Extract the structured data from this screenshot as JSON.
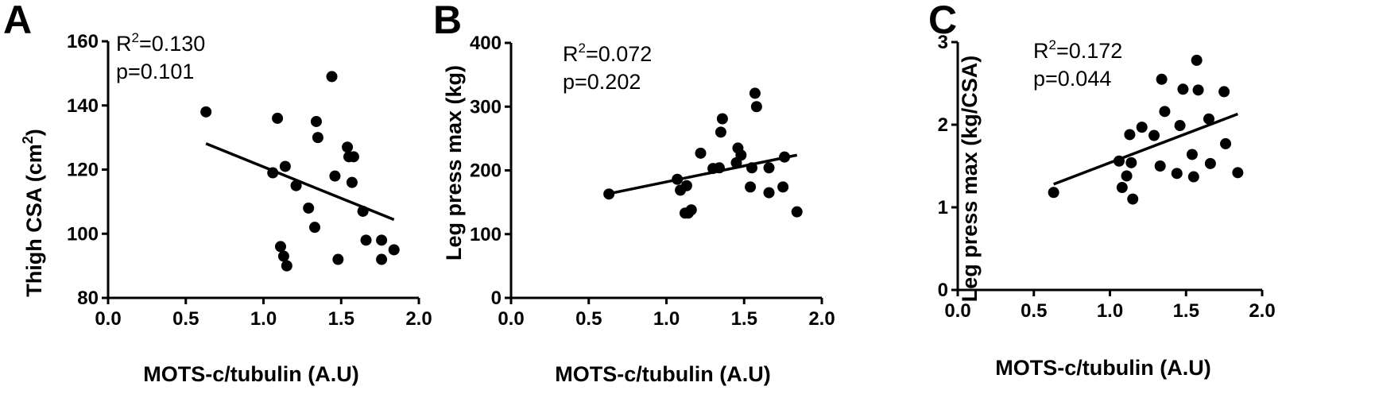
{
  "chart_data": [
    {
      "type": "scatter",
      "panel": "A",
      "xlabel": "MOTS-c/tubulin (A.U)",
      "ylabel": "Thigh CSA (cm²)",
      "xlim": [
        0.0,
        2.0
      ],
      "ylim": [
        80,
        160
      ],
      "x_ticks": [
        "0.0",
        "0.5",
        "1.0",
        "1.5",
        "2.0"
      ],
      "y_ticks": [
        "80",
        "100",
        "120",
        "140",
        "160"
      ],
      "r2_text": "=0.130",
      "p_text": "p=0.101",
      "points": [
        [
          0.63,
          138
        ],
        [
          1.06,
          119
        ],
        [
          1.09,
          136
        ],
        [
          1.11,
          96
        ],
        [
          1.13,
          93
        ],
        [
          1.14,
          121
        ],
        [
          1.15,
          90
        ],
        [
          1.21,
          115
        ],
        [
          1.29,
          108
        ],
        [
          1.33,
          102
        ],
        [
          1.34,
          135
        ],
        [
          1.35,
          130
        ],
        [
          1.44,
          149
        ],
        [
          1.46,
          118
        ],
        [
          1.48,
          92
        ],
        [
          1.54,
          127
        ],
        [
          1.55,
          124
        ],
        [
          1.57,
          116
        ],
        [
          1.58,
          124
        ],
        [
          1.64,
          107
        ],
        [
          1.66,
          98
        ],
        [
          1.76,
          98
        ],
        [
          1.76,
          92
        ],
        [
          1.84,
          95
        ]
      ],
      "fit": [
        [
          0.63,
          128.1
        ],
        [
          1.84,
          104.4
        ]
      ]
    },
    {
      "type": "scatter",
      "panel": "B",
      "xlabel": "MOTS-c/tubulin (A.U)",
      "ylabel": "Leg press max (kg)",
      "xlim": [
        0.0,
        2.0
      ],
      "ylim": [
        0,
        400
      ],
      "x_ticks": [
        "0.0",
        "0.5",
        "1.0",
        "1.5",
        "2.0"
      ],
      "y_ticks": [
        "0",
        "100",
        "200",
        "300",
        "400"
      ],
      "r2_text": "=0.072",
      "p_text": "p=0.202",
      "points": [
        [
          0.63,
          163
        ],
        [
          1.07,
          186
        ],
        [
          1.09,
          169
        ],
        [
          1.12,
          133
        ],
        [
          1.13,
          176
        ],
        [
          1.14,
          133
        ],
        [
          1.16,
          138
        ],
        [
          1.22,
          227
        ],
        [
          1.3,
          203
        ],
        [
          1.34,
          204
        ],
        [
          1.35,
          260
        ],
        [
          1.36,
          281
        ],
        [
          1.45,
          212
        ],
        [
          1.46,
          235
        ],
        [
          1.48,
          224
        ],
        [
          1.54,
          174
        ],
        [
          1.55,
          204
        ],
        [
          1.57,
          321
        ],
        [
          1.58,
          300
        ],
        [
          1.66,
          165
        ],
        [
          1.66,
          204
        ],
        [
          1.75,
          174
        ],
        [
          1.76,
          221
        ],
        [
          1.84,
          135
        ]
      ],
      "fit": [
        [
          0.63,
          163.5
        ],
        [
          1.84,
          224
        ]
      ]
    },
    {
      "type": "scatter",
      "panel": "C",
      "xlabel": "MOTS-c/tubulin (A.U)",
      "ylabel": "Leg press max  (kg/CSA)",
      "xlim": [
        0.0,
        2.0
      ],
      "ylim": [
        0,
        3
      ],
      "x_ticks": [
        "0.0",
        "0.5",
        "1.0",
        "1.5",
        "2.0"
      ],
      "y_ticks": [
        "0",
        "1",
        "2",
        "3"
      ],
      "r2_text": "=0.172",
      "p_text": "p=0.044",
      "points": [
        [
          0.63,
          1.18
        ],
        [
          1.06,
          1.56
        ],
        [
          1.08,
          1.24
        ],
        [
          1.11,
          1.38
        ],
        [
          1.13,
          1.88
        ],
        [
          1.14,
          1.54
        ],
        [
          1.15,
          1.1
        ],
        [
          1.21,
          1.97
        ],
        [
          1.29,
          1.87
        ],
        [
          1.33,
          1.5
        ],
        [
          1.34,
          2.55
        ],
        [
          1.36,
          2.16
        ],
        [
          1.44,
          1.41
        ],
        [
          1.46,
          1.99
        ],
        [
          1.48,
          2.43
        ],
        [
          1.54,
          1.64
        ],
        [
          1.55,
          1.37
        ],
        [
          1.57,
          2.78
        ],
        [
          1.58,
          2.42
        ],
        [
          1.65,
          2.07
        ],
        [
          1.66,
          1.53
        ],
        [
          1.75,
          2.4
        ],
        [
          1.76,
          1.77
        ],
        [
          1.84,
          1.42
        ]
      ],
      "fit": [
        [
          0.63,
          1.28
        ],
        [
          1.84,
          2.13
        ]
      ]
    }
  ]
}
